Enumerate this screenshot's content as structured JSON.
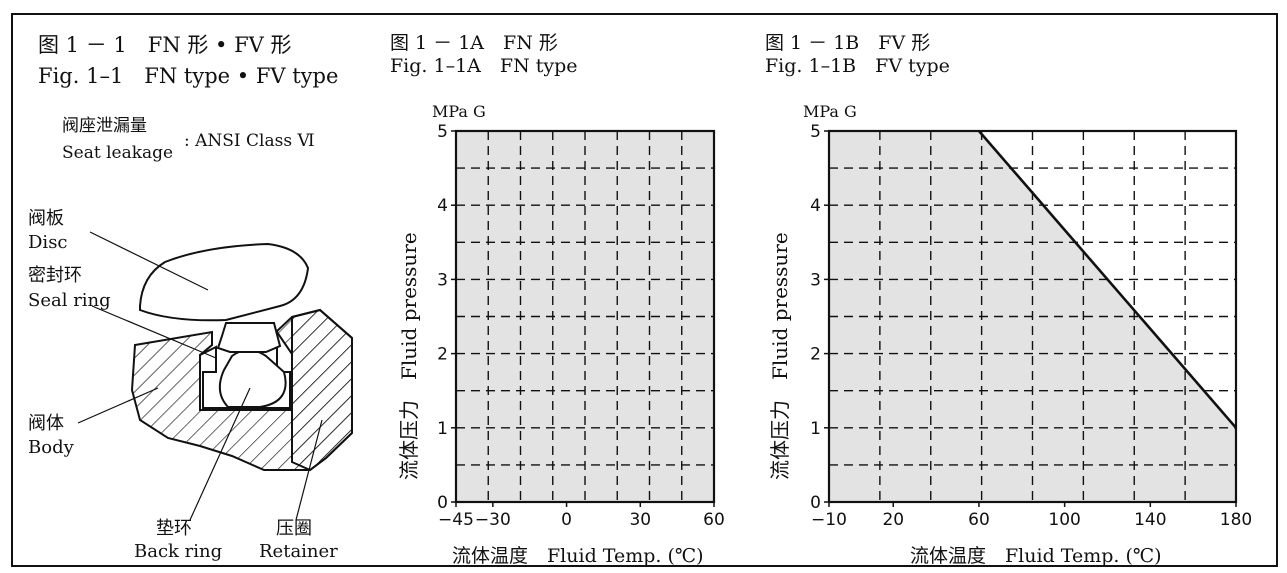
{
  "left": {
    "title_cn": "图 1 － 1　FN 形 • FV 形",
    "title_en": "Fig. 1–1　FN type • FV type",
    "leak_cn": "阀座泄漏量",
    "leak_en": "Seat leakage",
    "leak_val": ": ANSI Class Ⅵ",
    "parts": {
      "disc_cn": "阀板",
      "disc_en": "Disc",
      "seal_cn": "密封环",
      "seal_en": "Seal ring",
      "body_cn": "阀体",
      "body_en": "Body",
      "back_cn": "垫环",
      "back_en": "Back ring",
      "ret_cn": "压圈",
      "ret_en": "Retainer"
    }
  },
  "chart_data": [
    {
      "type": "area",
      "title_cn": "图 1 － 1A　FN 形",
      "title_en": "Fig. 1–1A　FN type",
      "yunit": "MPa G",
      "ylabel": "流体压力　Fluid pressure",
      "xlabel": "流体温度　Fluid Temp. (℃)",
      "xticks": [
        "−45",
        "−30",
        "0",
        "30",
        "60"
      ],
      "yticks": [
        "0",
        "1",
        "2",
        "3",
        "4",
        "5"
      ],
      "xlim": [
        -45,
        60
      ],
      "ylim": [
        0,
        5
      ],
      "region": {
        "x": [
          -45,
          60,
          60,
          -45
        ],
        "y": [
          0,
          0,
          5,
          5
        ]
      },
      "grid": true
    },
    {
      "type": "area",
      "title_cn": "图 1 － 1B　FV 形",
      "title_en": "Fig. 1–1B　FV type",
      "yunit": "MPa G",
      "ylabel": "流体压力　Fluid pressure",
      "xlabel": "流体温度　Fluid Temp. (℃)",
      "xticks": [
        "−10",
        "20",
        "60",
        "100",
        "140",
        "180"
      ],
      "yticks": [
        "0",
        "1",
        "2",
        "3",
        "4",
        "5"
      ],
      "xlim": [
        -10,
        180
      ],
      "ylim": [
        0,
        5
      ],
      "region": {
        "x": [
          -10,
          180,
          180,
          60,
          -10
        ],
        "y": [
          0,
          0,
          1,
          5,
          5
        ]
      },
      "boundary": {
        "x": [
          60,
          180
        ],
        "y": [
          5,
          1
        ]
      },
      "grid": true
    }
  ],
  "colors": {
    "fill": "#e3e3e3",
    "ink": "#111111"
  }
}
